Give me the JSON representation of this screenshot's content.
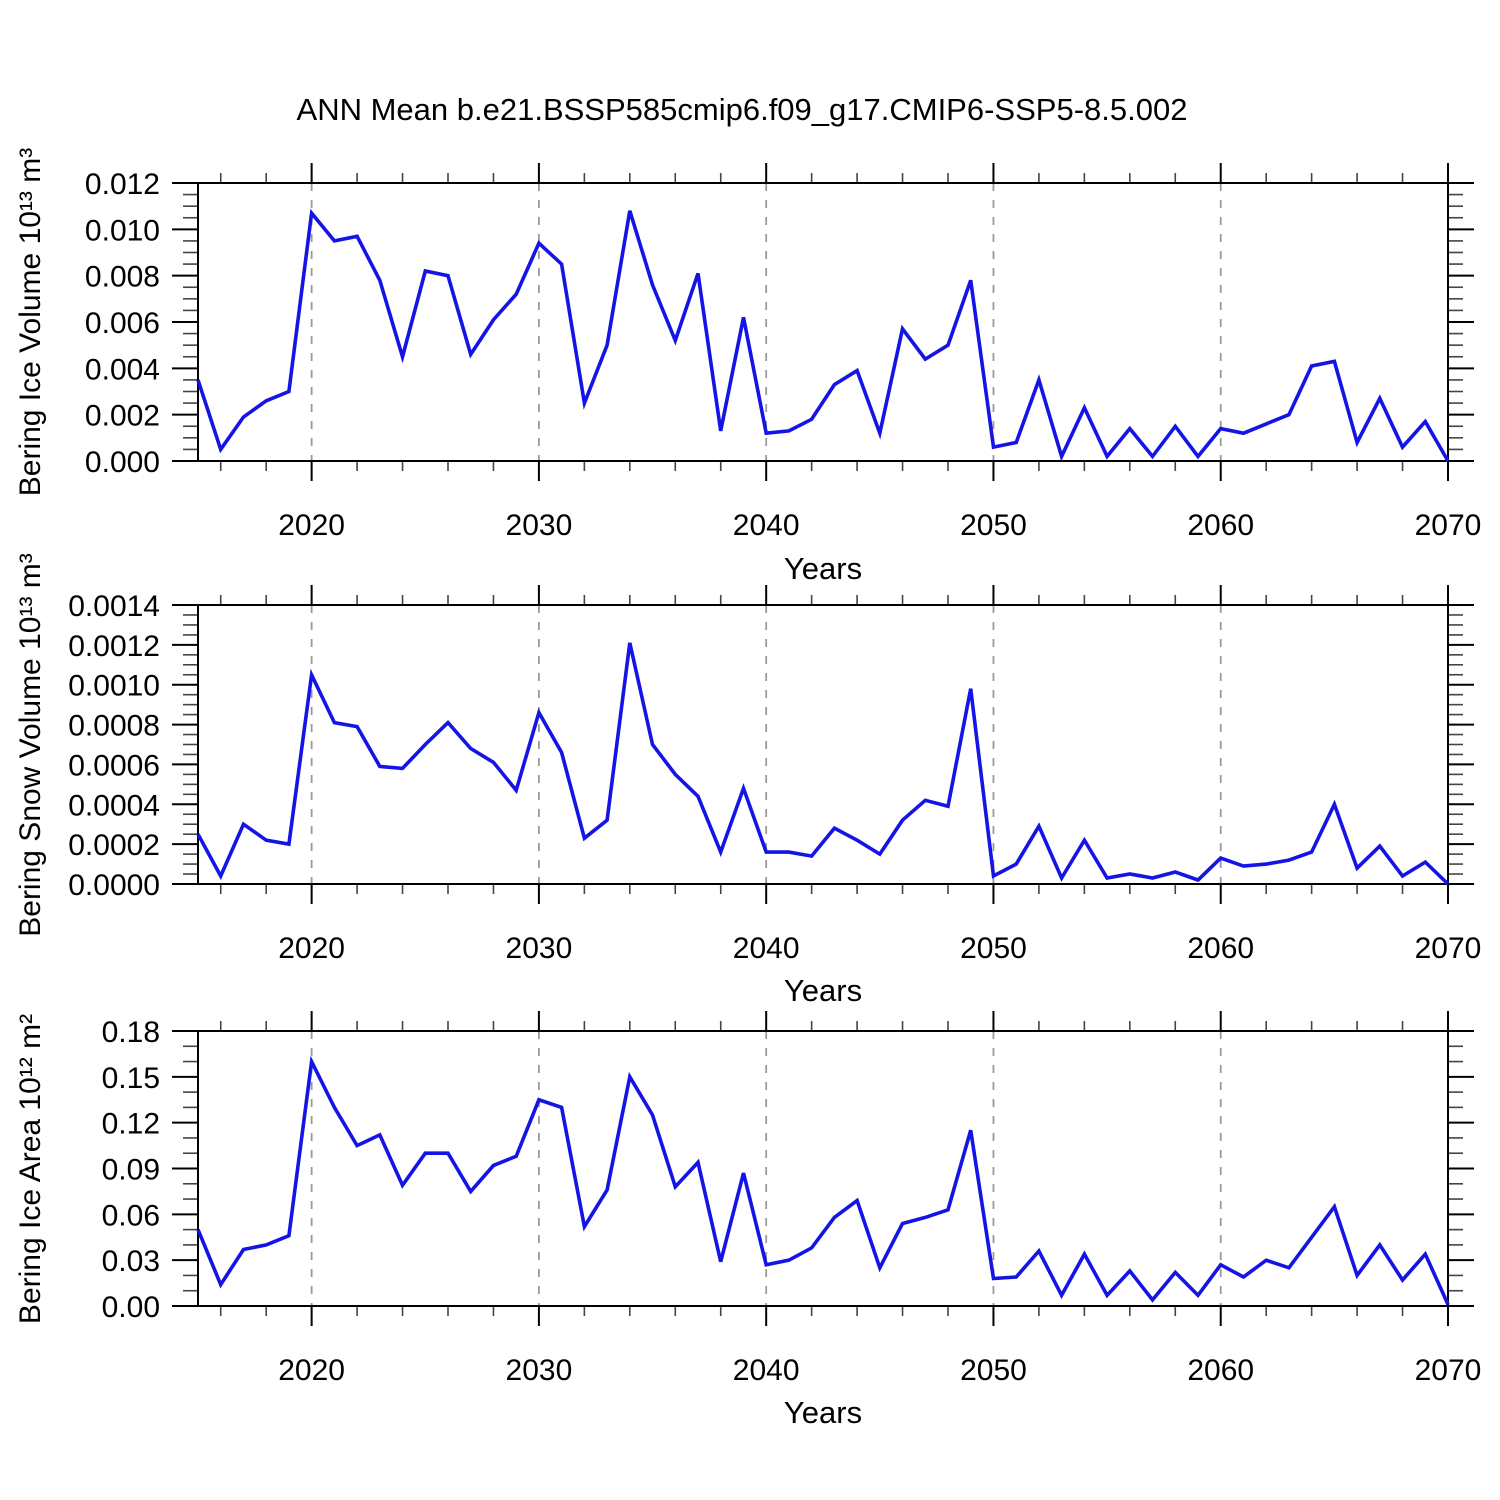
{
  "title": "ANN Mean b.e21.BSSP585cmip6.f09_g17.CMIP6-SSP5-8.5.002",
  "line_color": "#1414e6",
  "gridline_color": "#9a9a9a",
  "frame_color": "#000000",
  "chart_data": {
    "type": "line",
    "xlabel": "Years",
    "xlim": [
      2015,
      2070
    ],
    "x_major_ticks": [
      2020,
      2030,
      2040,
      2050,
      2060,
      2070
    ],
    "x_tick_labels": [
      "2020",
      "2030",
      "2040",
      "2050",
      "2060",
      "2070"
    ],
    "x_minor_step": 2,
    "x_gridlines": [
      2020,
      2030,
      2040,
      2050,
      2060
    ],
    "grid_style": "dashed-vertical",
    "legend": "none",
    "x": [
      2015,
      2016,
      2017,
      2018,
      2019,
      2020,
      2021,
      2022,
      2023,
      2024,
      2025,
      2026,
      2027,
      2028,
      2029,
      2030,
      2031,
      2032,
      2033,
      2034,
      2035,
      2036,
      2037,
      2038,
      2039,
      2040,
      2041,
      2042,
      2043,
      2044,
      2045,
      2046,
      2047,
      2048,
      2049,
      2050,
      2051,
      2052,
      2053,
      2054,
      2055,
      2056,
      2057,
      2058,
      2059,
      2060,
      2061,
      2062,
      2063,
      2064,
      2065,
      2066,
      2067,
      2068,
      2069,
      2070
    ],
    "panels": [
      {
        "id": "ice-volume",
        "series_name": "Bering Ice Volume",
        "ylabel": "Bering Ice Volume 10¹³ m³",
        "ylim": [
          0,
          0.012
        ],
        "y_major_ticks": [
          0.0,
          0.002,
          0.004,
          0.006,
          0.008,
          0.01,
          0.012
        ],
        "y_tick_labels": [
          "0.000",
          "0.002",
          "0.004",
          "0.006",
          "0.008",
          "0.010",
          "0.012"
        ],
        "y_minor_step": 0.0005,
        "values": [
          0.0035,
          0.0005,
          0.0019,
          0.0026,
          0.003,
          0.0107,
          0.0095,
          0.0097,
          0.0078,
          0.0045,
          0.0082,
          0.008,
          0.0046,
          0.0061,
          0.0072,
          0.0094,
          0.0085,
          0.0025,
          0.005,
          0.0108,
          0.0076,
          0.0052,
          0.0081,
          0.0013,
          0.0062,
          0.0012,
          0.0013,
          0.0018,
          0.0033,
          0.0039,
          0.0012,
          0.0057,
          0.0044,
          0.005,
          0.0078,
          0.0006,
          0.0008,
          0.0035,
          0.0002,
          0.0023,
          0.0002,
          0.0014,
          0.0002,
          0.0015,
          0.0002,
          0.0014,
          0.0012,
          0.0016,
          0.002,
          0.0041,
          0.0043,
          0.0008,
          0.0027,
          0.0006,
          0.0017,
          0.0
        ]
      },
      {
        "id": "snow-volume",
        "series_name": "Bering Snow Volume",
        "ylabel": "Bering Snow Volume 10¹³ m³",
        "ylim": [
          0,
          0.0014
        ],
        "y_major_ticks": [
          0.0,
          0.0002,
          0.0004,
          0.0006,
          0.0008,
          0.001,
          0.0012,
          0.0014
        ],
        "y_tick_labels": [
          "0.0000",
          "0.0002",
          "0.0004",
          "0.0006",
          "0.0008",
          "0.0010",
          "0.0012",
          "0.0014"
        ],
        "y_minor_step": 5e-05,
        "values": [
          0.00025,
          4e-05,
          0.0003,
          0.00022,
          0.0002,
          0.00105,
          0.00081,
          0.00079,
          0.00059,
          0.00058,
          0.0007,
          0.00081,
          0.00068,
          0.00061,
          0.00047,
          0.00086,
          0.00066,
          0.00023,
          0.00032,
          0.00121,
          0.0007,
          0.00055,
          0.00044,
          0.00016,
          0.00048,
          0.00016,
          0.00016,
          0.00014,
          0.00028,
          0.00022,
          0.00015,
          0.00032,
          0.00042,
          0.00039,
          0.00098,
          4e-05,
          0.0001,
          0.00029,
          3e-05,
          0.00022,
          3e-05,
          5e-05,
          3e-05,
          6e-05,
          2e-05,
          0.00013,
          9e-05,
          0.0001,
          0.00012,
          0.00016,
          0.0004,
          8e-05,
          0.00019,
          4e-05,
          0.00011,
          0.0
        ]
      },
      {
        "id": "ice-area",
        "series_name": "Bering Ice Area",
        "ylabel": "Bering Ice Area 10¹² m²",
        "ylim": [
          0,
          0.18
        ],
        "y_major_ticks": [
          0.0,
          0.03,
          0.06,
          0.09,
          0.12,
          0.15,
          0.18
        ],
        "y_tick_labels": [
          "0.00",
          "0.03",
          "0.06",
          "0.09",
          "0.12",
          "0.15",
          "0.18"
        ],
        "y_minor_step": 0.01,
        "values": [
          0.05,
          0.014,
          0.037,
          0.04,
          0.046,
          0.16,
          0.13,
          0.105,
          0.112,
          0.079,
          0.1,
          0.1,
          0.075,
          0.092,
          0.098,
          0.135,
          0.13,
          0.052,
          0.076,
          0.15,
          0.125,
          0.078,
          0.094,
          0.029,
          0.087,
          0.027,
          0.03,
          0.038,
          0.058,
          0.069,
          0.025,
          0.054,
          0.058,
          0.063,
          0.115,
          0.018,
          0.019,
          0.036,
          0.007,
          0.034,
          0.007,
          0.023,
          0.004,
          0.022,
          0.007,
          0.027,
          0.019,
          0.03,
          0.025,
          0.045,
          0.065,
          0.02,
          0.04,
          0.017,
          0.034,
          0.001
        ]
      }
    ]
  }
}
